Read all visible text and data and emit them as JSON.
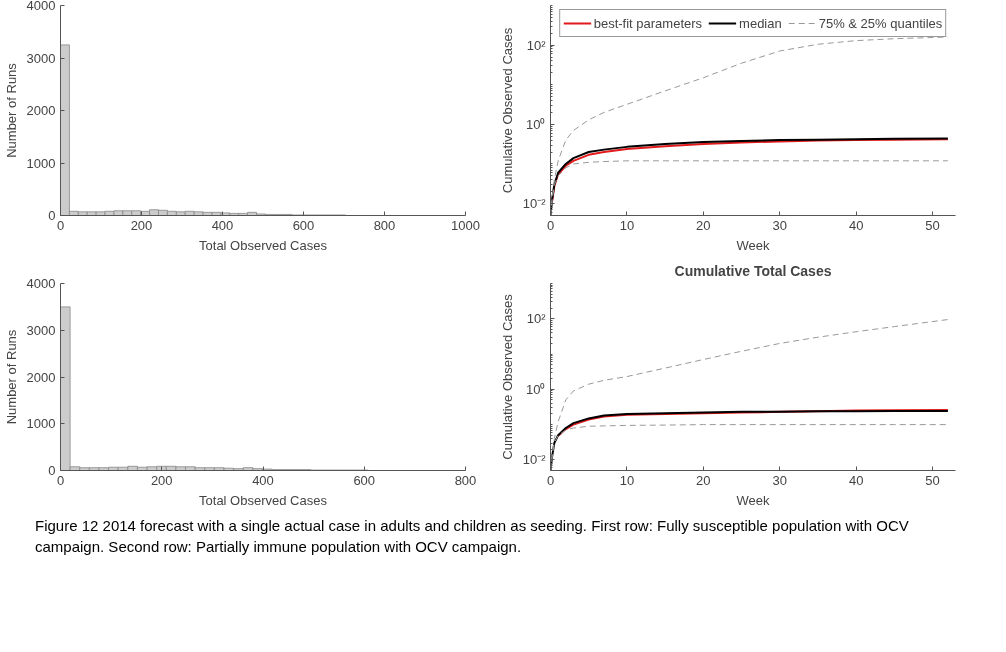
{
  "chart_data": [
    {
      "type": "histogram",
      "xlabel": "Total Observed Cases",
      "ylabel": "Number of Runs",
      "color": "#cccccc",
      "bins": [
        0,
        22,
        44,
        66,
        88,
        110,
        132,
        154,
        176,
        198,
        220,
        242,
        264,
        286,
        308,
        330,
        352,
        374,
        396,
        418,
        440,
        462,
        484,
        506,
        528,
        550,
        572,
        594,
        616,
        638,
        660,
        682,
        704
      ],
      "values": [
        3250,
        80,
        70,
        70,
        70,
        80,
        90,
        90,
        90,
        80,
        110,
        100,
        80,
        70,
        80,
        70,
        60,
        60,
        50,
        40,
        40,
        60,
        30,
        20,
        20,
        20,
        10,
        10,
        10,
        10,
        10,
        10
      ],
      "xlim": [
        0,
        1000
      ],
      "xticks": [
        0,
        200,
        400,
        600,
        800,
        1000
      ],
      "ylim": [
        0,
        4000
      ],
      "yticks": [
        0,
        1000,
        2000,
        3000,
        4000
      ],
      "grid": false
    },
    {
      "type": "line",
      "xlabel": "Week",
      "ylabel": "Cumulative Observed Cases",
      "log": "y",
      "legend": "top",
      "grid": false,
      "x": [
        0,
        0.2,
        0.5,
        1,
        2,
        3,
        5,
        7,
        10,
        15,
        20,
        25,
        30,
        35,
        40,
        45,
        52
      ],
      "series": [
        {
          "name": "best-fit parameters",
          "color": "#e31a1c",
          "line_style": "solid",
          "values": [
            null,
            0.011,
            0.028,
            0.055,
            0.09,
            0.12,
            0.17,
            0.2,
            0.24,
            0.28,
            0.32,
            0.35,
            0.37,
            0.39,
            0.4,
            0.41,
            0.42
          ]
        },
        {
          "name": "median",
          "color": "#000000",
          "line_style": "solid",
          "values": [
            0.005,
            0.012,
            0.03,
            0.06,
            0.1,
            0.14,
            0.2,
            0.23,
            0.27,
            0.32,
            0.36,
            0.38,
            0.4,
            0.41,
            0.42,
            0.43,
            0.44
          ]
        },
        {
          "name": "75% & 25% quantiles",
          "color": "#999999",
          "line_style": "dashed",
          "values": [
            0.005,
            0.012,
            0.04,
            0.12,
            0.4,
            0.7,
            1.3,
            2,
            3.2,
            7,
            15,
            35,
            71,
            105,
            130,
            145,
            160
          ]
        },
        {
          "color": "#999999",
          "line_style": "dashed",
          "values": [
            0.005,
            0.012,
            0.03,
            0.05,
            0.08,
            0.1,
            0.11,
            0.115,
            0.12,
            0.12,
            0.12,
            0.12,
            0.12,
            0.12,
            0.12,
            0.12,
            0.12
          ]
        }
      ],
      "xlim": [
        0,
        53
      ],
      "xticks": [
        0,
        10,
        20,
        30,
        40,
        50
      ],
      "ylim": [
        0.005,
        1000
      ],
      "yticks": [
        {
          "value": 0.01,
          "label": "10⁻²"
        },
        {
          "value": 1,
          "label": "10⁰"
        },
        {
          "value": 100,
          "label": "10²"
        }
      ]
    },
    {
      "type": "histogram",
      "xlabel": "Total Observed Cases",
      "ylabel": "Number of Runs",
      "color": "#cccccc",
      "bins": [
        0,
        19,
        38,
        57,
        76,
        95,
        114,
        133,
        152,
        171,
        190,
        209,
        228,
        247,
        266,
        285,
        304,
        323,
        342,
        361,
        380,
        399,
        418,
        437,
        456,
        475,
        494,
        513,
        532,
        551,
        570,
        589,
        608
      ],
      "values": [
        3500,
        80,
        60,
        60,
        60,
        70,
        70,
        90,
        70,
        80,
        90,
        90,
        80,
        80,
        60,
        60,
        60,
        50,
        40,
        60,
        40,
        30,
        20,
        20,
        20,
        20,
        10,
        10,
        10,
        10,
        10,
        10
      ],
      "xlim": [
        0,
        800
      ],
      "xticks": [
        0,
        200,
        400,
        600,
        800
      ],
      "ylim": [
        0,
        4000
      ],
      "yticks": [
        0,
        1000,
        2000,
        3000,
        4000
      ],
      "grid": false
    },
    {
      "type": "line",
      "title": "Cumulative Total Cases",
      "xlabel": "Week",
      "ylabel": "Cumulative Observed Cases",
      "log": "y",
      "legend": false,
      "grid": false,
      "x": [
        0,
        0.2,
        0.5,
        1,
        2,
        3,
        5,
        7,
        10,
        15,
        20,
        25,
        30,
        35,
        40,
        45,
        52
      ],
      "series": [
        {
          "color": "#e31a1c",
          "line_style": "solid",
          "values": [
            null,
            null,
            null,
            0.048,
            0.075,
            0.1,
            0.14,
            0.17,
            0.19,
            0.2,
            0.21,
            0.22,
            0.23,
            0.24,
            0.25,
            0.255,
            0.26
          ]
        },
        {
          "color": "#000000",
          "line_style": "solid",
          "values": [
            0.005,
            0.012,
            0.03,
            0.05,
            0.08,
            0.11,
            0.15,
            0.18,
            0.2,
            0.21,
            0.22,
            0.23,
            0.23,
            0.24,
            0.24,
            0.245,
            0.245
          ]
        },
        {
          "color": "#999999",
          "line_style": "dashed",
          "values": [
            0.005,
            0.012,
            0.04,
            0.12,
            0.5,
            0.9,
            1.4,
            1.8,
            2.3,
            4,
            7,
            12,
            20,
            30,
            43,
            60,
            95
          ]
        },
        {
          "color": "#999999",
          "line_style": "dashed",
          "values": [
            0.005,
            0.012,
            0.03,
            0.05,
            0.07,
            0.08,
            0.09,
            0.092,
            0.095,
            0.097,
            0.1,
            0.1,
            0.1,
            0.1,
            0.1,
            0.1,
            0.1
          ]
        }
      ],
      "xlim": [
        0,
        53
      ],
      "xticks": [
        0,
        10,
        20,
        30,
        40,
        50
      ],
      "ylim": [
        0.005,
        1000
      ],
      "yticks": [
        {
          "value": 0.01,
          "label": "10⁻²"
        },
        {
          "value": 1,
          "label": "10⁰"
        },
        {
          "value": 100,
          "label": "10²"
        }
      ],
      "annotations": [
        "Figure 12 2014 forecast with a single actual case in adults and children as seeding. First row: Fully susceptible population with OCV campaign. Second row: Partially immune population with OCV campaign."
      ]
    }
  ]
}
